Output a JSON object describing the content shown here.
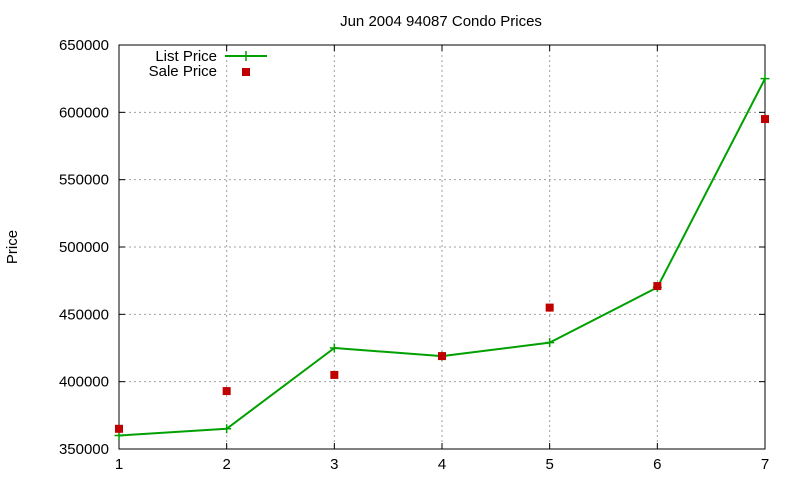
{
  "chart_data": {
    "type": "line",
    "title": "Jun 2004 94087 Condo Prices",
    "xlabel": "",
    "ylabel": "Price",
    "x": [
      1,
      2,
      3,
      4,
      5,
      6,
      7
    ],
    "xlim": [
      1,
      7
    ],
    "ylim": [
      350000,
      650000
    ],
    "xticks": [
      "1",
      "2",
      "3",
      "4",
      "5",
      "6",
      "7"
    ],
    "yticks": [
      "350000",
      "400000",
      "450000",
      "500000",
      "550000",
      "600000",
      "650000"
    ],
    "grid": true,
    "legend_position": "top-left",
    "series": [
      {
        "name": "List Price",
        "style": "line-with-plus-markers",
        "color": "#00a000",
        "values": [
          360000,
          365000,
          425000,
          419000,
          429000,
          470000,
          625000
        ]
      },
      {
        "name": "Sale Price",
        "style": "square-markers",
        "color": "#c00000",
        "values": [
          365000,
          393000,
          405000,
          419000,
          455000,
          471000,
          595000
        ]
      }
    ]
  }
}
